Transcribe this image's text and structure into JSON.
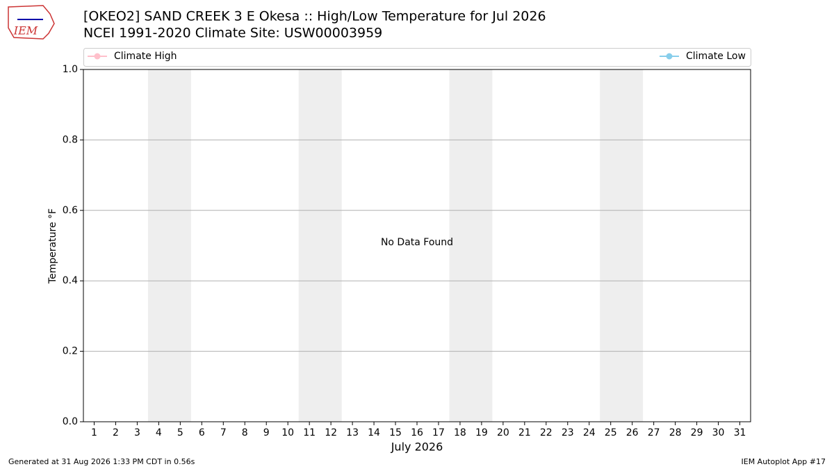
{
  "logo": "IEM",
  "footer_left": "Generated at 31 Aug 2026 1:33 PM CDT in 0.56s",
  "footer_right": "IEM Autoplot App #17",
  "chart_data": {
    "type": "line",
    "title": "[OKEO2] SAND CREEK 3 E Okesa :: High/Low Temperature for Jul 2026",
    "subtitle": "NCEI 1991-2020 Climate Site: USW00003959",
    "ylabel": "Temperature °F",
    "xlabel": "July 2026",
    "annotation": "No Data Found",
    "x": [],
    "series": [
      {
        "name": "Climate High",
        "color": "#ffc0cb",
        "values": []
      },
      {
        "name": "Climate Low",
        "color": "#87ceeb",
        "values": []
      }
    ],
    "xlim": [
      0.5,
      31.5
    ],
    "xticks": [
      1,
      2,
      3,
      4,
      5,
      6,
      7,
      8,
      9,
      10,
      11,
      12,
      13,
      14,
      15,
      16,
      17,
      18,
      19,
      20,
      21,
      22,
      23,
      24,
      25,
      26,
      27,
      28,
      29,
      30,
      31
    ],
    "ylim": [
      0,
      1
    ],
    "yticks": [
      {
        "value": 0,
        "label": "0.0"
      },
      0.2,
      0.4,
      0.6,
      0.8,
      {
        "value": 1,
        "label": "1.0"
      }
    ],
    "shaded_spans": [
      [
        3.5,
        5.5
      ],
      [
        10.5,
        12.5
      ],
      [
        17.5,
        19.5
      ],
      [
        24.5,
        26.5
      ]
    ],
    "shade_color": "#eeeeee",
    "grid": true
  }
}
